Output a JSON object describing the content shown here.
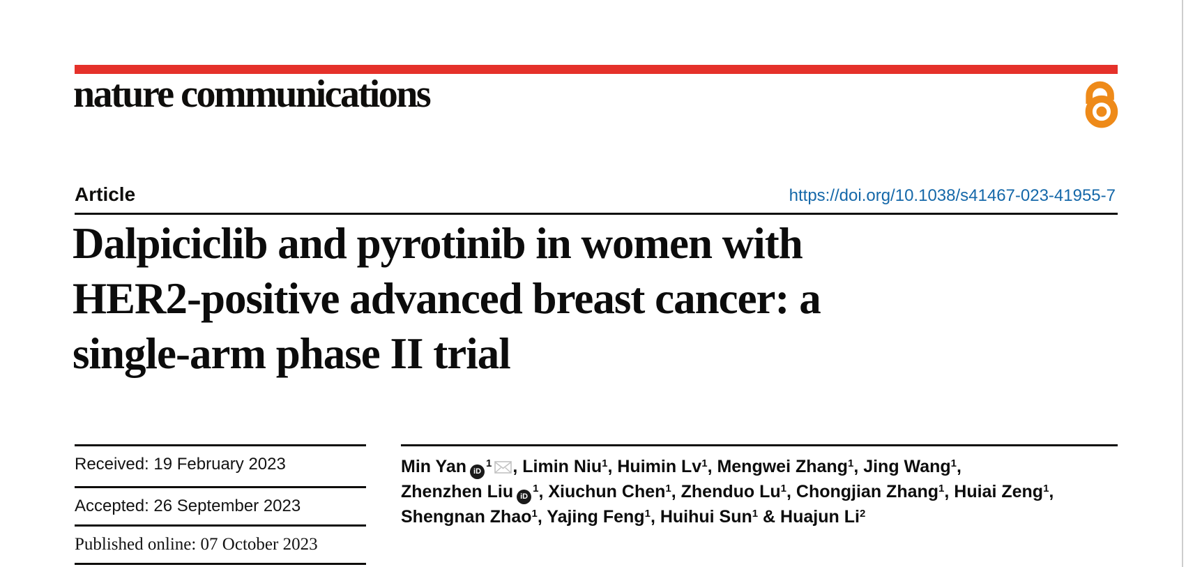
{
  "page": {
    "brand_red": "#e5312a",
    "open_access_orange": "#ee8a19",
    "link_blue": "#1568a9"
  },
  "header": {
    "journal_logo": "nature communications",
    "open_access_icon": "open-access-padlock"
  },
  "article_meta": {
    "type_label": "Article",
    "doi": "https://doi.org/10.1038/s41467-023-41955-7"
  },
  "title_lines": [
    "Dalpiciclib and pyrotinib in women with",
    "HER2-positive advanced breast cancer: a",
    "single-arm phase II trial"
  ],
  "history": [
    {
      "label": "Received:",
      "value": "19 February 2023",
      "serif": false
    },
    {
      "label": "Accepted:",
      "value": "26 September 2023",
      "serif": false
    },
    {
      "label": "Published online:",
      "value": "07 October 2023",
      "serif": true
    }
  ],
  "authors": {
    "lines": [
      [
        {
          "t": "Min Yan"
        },
        {
          "icon": "orcid"
        },
        {
          "sup": "1"
        },
        {
          "icon": "email"
        },
        {
          "t": ", Limin Niu"
        },
        {
          "sup": "1"
        },
        {
          "t": ", Huimin Lv"
        },
        {
          "sup": "1"
        },
        {
          "t": ", Mengwei Zhang"
        },
        {
          "sup": "1"
        },
        {
          "t": ", Jing Wang"
        },
        {
          "sup": "1"
        },
        {
          "t": ","
        }
      ],
      [
        {
          "t": "Zhenzhen Liu"
        },
        {
          "icon": "orcid"
        },
        {
          "sup": "1"
        },
        {
          "t": ", Xiuchun Chen"
        },
        {
          "sup": "1"
        },
        {
          "t": ", Zhenduo Lu"
        },
        {
          "sup": "1"
        },
        {
          "t": ", Chongjian Zhang"
        },
        {
          "sup": "1"
        },
        {
          "t": ", Huiai Zeng"
        },
        {
          "sup": "1"
        },
        {
          "t": ","
        }
      ],
      [
        {
          "t": "Shengnan Zhao"
        },
        {
          "sup": "1"
        },
        {
          "t": ", Yajing Feng"
        },
        {
          "sup": "1"
        },
        {
          "t": ", Huihui Sun"
        },
        {
          "sup": "1"
        },
        {
          "t": " & Huajun Li"
        },
        {
          "sup": "2"
        }
      ]
    ],
    "orcid_glyph": "iD"
  }
}
